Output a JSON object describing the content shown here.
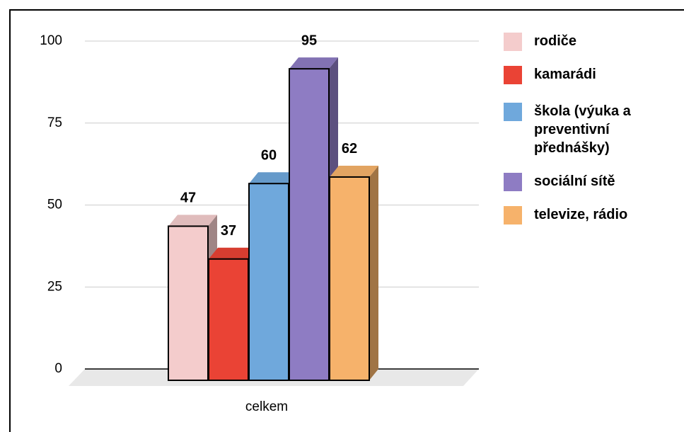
{
  "chart_data": {
    "type": "bar3d",
    "categories": [
      "celkem"
    ],
    "series": [
      {
        "name": "rodiče",
        "color": "#f4cccc",
        "values": [
          47
        ]
      },
      {
        "name": "kamarádi",
        "color": "#ea4335",
        "values": [
          37
        ]
      },
      {
        "name": "škola (výuka a preventivní přednášky)",
        "color": "#6fa8dc",
        "values": [
          60
        ]
      },
      {
        "name": "sociální sítě",
        "color": "#8e7cc3",
        "values": [
          95
        ]
      },
      {
        "name": "televize, rádio",
        "color": "#f6b26b",
        "values": [
          62
        ]
      }
    ],
    "ylim": [
      0,
      100
    ],
    "yticks": [
      0,
      25,
      50,
      75,
      100
    ],
    "grid": true,
    "legend": "right"
  }
}
